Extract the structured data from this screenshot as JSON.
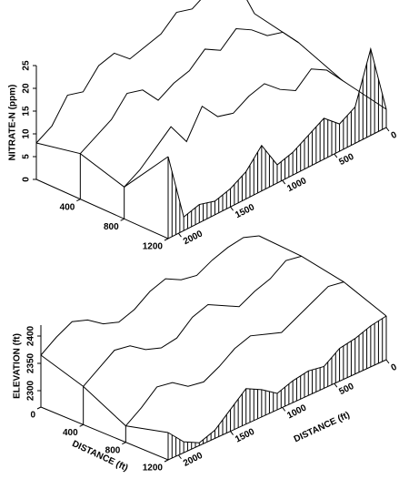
{
  "chart_data": [
    {
      "type": "ridge3d",
      "y_label": "NITRATE-N (ppm)",
      "x": [
        0,
        150,
        300,
        450,
        600,
        750,
        900,
        1050,
        1200,
        1350,
        1500,
        1650,
        1800,
        1950,
        2100
      ],
      "xlim": [
        0,
        2100
      ],
      "xticks": [
        0,
        500,
        1000,
        1500,
        2000
      ],
      "zlim": [
        0,
        1200
      ],
      "zticks": [
        400,
        800,
        1200
      ],
      "ylim": [
        0,
        25
      ],
      "yticks": [
        0,
        5,
        10,
        15,
        20,
        25
      ],
      "series": [
        {
          "z": 0,
          "values": [
            12,
            20,
            23,
            22,
            20,
            21,
            18,
            17,
            16,
            19,
            18,
            14,
            15,
            10,
            8
          ]
        },
        {
          "z": 400,
          "values": [
            10,
            14,
            15,
            18,
            20,
            17,
            19,
            16,
            15,
            13,
            17,
            18,
            14,
            12,
            10
          ]
        },
        {
          "z": 800,
          "values": [
            6,
            10,
            12,
            9,
            11,
            14,
            13,
            11,
            12,
            16,
            10,
            15,
            12,
            9,
            7
          ]
        },
        {
          "z": 1200,
          "values": [
            4,
            19,
            8,
            6,
            9,
            7,
            5,
            4,
            10,
            6,
            4,
            3,
            4,
            3,
            18
          ]
        }
      ]
    },
    {
      "type": "ridge3d",
      "y_label": "ELEVATION (ft)",
      "x_label": "DISTANCE (ft)",
      "z_label": "DISTANCE (ft)",
      "x": [
        0,
        150,
        300,
        450,
        600,
        750,
        900,
        1050,
        1200,
        1350,
        1500,
        1650,
        1800,
        1950,
        2100
      ],
      "xlim": [
        0,
        2100
      ],
      "xticks": [
        0,
        500,
        1000,
        1500,
        2000
      ],
      "zlim": [
        0,
        1200
      ],
      "zticks": [
        0,
        400,
        800,
        1200
      ],
      "ylim": [
        2270,
        2420
      ],
      "yticks": [
        2300,
        2350,
        2400
      ],
      "series": [
        {
          "z": 0,
          "values": [
            2400,
            2410,
            2405,
            2395,
            2380,
            2385,
            2400,
            2390,
            2370,
            2360,
            2370,
            2390,
            2400,
            2385,
            2365
          ]
        },
        {
          "z": 400,
          "values": [
            2395,
            2400,
            2380,
            2370,
            2355,
            2370,
            2385,
            2375,
            2350,
            2345,
            2355,
            2375,
            2380,
            2360,
            2340
          ]
        },
        {
          "z": 800,
          "values": [
            2380,
            2385,
            2370,
            2355,
            2340,
            2350,
            2360,
            2350,
            2330,
            2315,
            2320,
            2340,
            2345,
            2320,
            2300
          ]
        },
        {
          "z": 1200,
          "values": [
            2350,
            2345,
            2335,
            2330,
            2310,
            2315,
            2310,
            2300,
            2320,
            2335,
            2310,
            2285,
            2275,
            2290,
            2320
          ]
        }
      ]
    }
  ]
}
